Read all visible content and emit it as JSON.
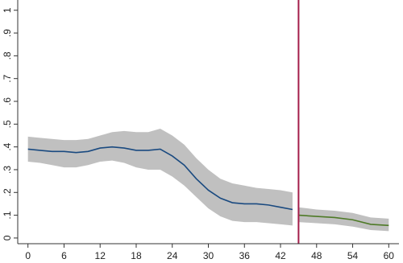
{
  "chart_data": {
    "type": "line-band",
    "xlim": [
      -1.7,
      61.7
    ],
    "ylim": [
      -0.025,
      1.045
    ],
    "xticks": [
      0,
      6,
      12,
      18,
      24,
      30,
      36,
      42,
      48,
      54,
      60
    ],
    "yticks": [
      0,
      {
        "value": 0.1,
        "label": ".1"
      },
      {
        "value": 0.2,
        "label": ".2"
      },
      {
        "value": 0.3,
        "label": ".3"
      },
      {
        "value": 0.4,
        "label": ".4"
      },
      {
        "value": 0.5,
        "label": ".5"
      },
      {
        "value": 0.6,
        "label": ".6"
      },
      {
        "value": 0.7,
        "label": ".7"
      },
      {
        "value": 0.8,
        "label": ".8"
      },
      {
        "value": 0.9,
        "label": ".9"
      },
      1
    ],
    "band_color": "#c0c0c0",
    "vline": {
      "x": 45,
      "color": "#a31d4a"
    },
    "series": [
      {
        "color": "#1a4a80",
        "x": [
          0,
          2,
          4,
          6,
          8,
          10,
          12,
          14,
          16,
          18,
          20,
          22,
          24,
          26,
          28,
          30,
          32,
          34,
          36,
          38,
          40,
          42,
          44
        ],
        "values": [
          0.39,
          0.385,
          0.38,
          0.38,
          0.375,
          0.38,
          0.395,
          0.4,
          0.395,
          0.385,
          0.385,
          0.39,
          0.36,
          0.32,
          0.26,
          0.21,
          0.175,
          0.155,
          0.15,
          0.15,
          0.145,
          0.135,
          0.125
        ],
        "upper": [
          0.445,
          0.44,
          0.435,
          0.43,
          0.43,
          0.435,
          0.45,
          0.465,
          0.47,
          0.465,
          0.465,
          0.48,
          0.45,
          0.41,
          0.35,
          0.3,
          0.26,
          0.24,
          0.23,
          0.22,
          0.215,
          0.21,
          0.2
        ],
        "lower": [
          0.335,
          0.33,
          0.32,
          0.31,
          0.31,
          0.32,
          0.335,
          0.34,
          0.33,
          0.31,
          0.3,
          0.3,
          0.27,
          0.23,
          0.18,
          0.13,
          0.095,
          0.075,
          0.07,
          0.07,
          0.065,
          0.06,
          0.055
        ]
      },
      {
        "color": "#4e7a27",
        "x": [
          45,
          48,
          51,
          54,
          57,
          60
        ],
        "values": [
          0.1,
          0.095,
          0.09,
          0.08,
          0.06,
          0.055
        ],
        "upper": [
          0.135,
          0.125,
          0.12,
          0.11,
          0.09,
          0.085
        ],
        "lower": [
          0.07,
          0.065,
          0.06,
          0.05,
          0.035,
          0.03
        ]
      }
    ]
  }
}
